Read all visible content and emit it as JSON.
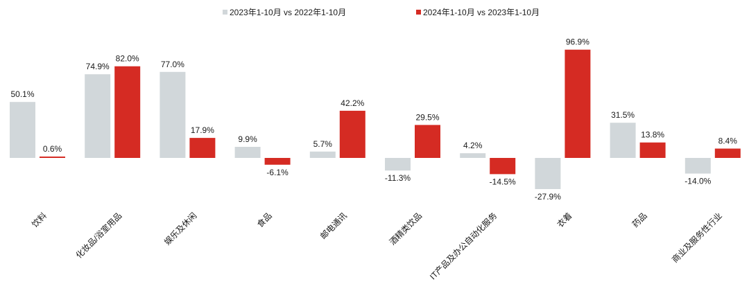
{
  "chart_data": {
    "type": "bar",
    "categories": [
      "饮料",
      "化妆品/浴室用品",
      "娱乐及休闲",
      "食品",
      "邮电通讯",
      "酒精类饮品",
      "IT产品及办公自动化服务",
      "衣着",
      "药品",
      "商业及服务性行业"
    ],
    "series": [
      {
        "name": "2023年1-10月 vs 2022年1-10月",
        "color": "#d1d7da",
        "values": [
          50.1,
          74.9,
          77.0,
          9.9,
          5.7,
          -11.3,
          4.2,
          -27.9,
          31.5,
          -14.0
        ],
        "labels": [
          "50.1%",
          "74.9%",
          "77.0%",
          "9.9%",
          "5.7%",
          "-11.3%",
          "4.2%",
          "-27.9%",
          "31.5%",
          "-14.0%"
        ]
      },
      {
        "name": "2024年1-10月 vs 2023年1-10月",
        "color": "#d52b23",
        "values": [
          0.6,
          82.0,
          17.9,
          -6.1,
          42.2,
          29.5,
          -14.5,
          96.9,
          13.8,
          8.4
        ],
        "labels": [
          "0.6%",
          "82.0%",
          "17.9%",
          "-6.1%",
          "42.2%",
          "29.5%",
          "-14.5%",
          "96.9%",
          "13.8%",
          "8.4%"
        ]
      }
    ],
    "unit": "%",
    "ylim": [
      -28,
      97
    ],
    "grid": false,
    "legend": "top-center"
  }
}
